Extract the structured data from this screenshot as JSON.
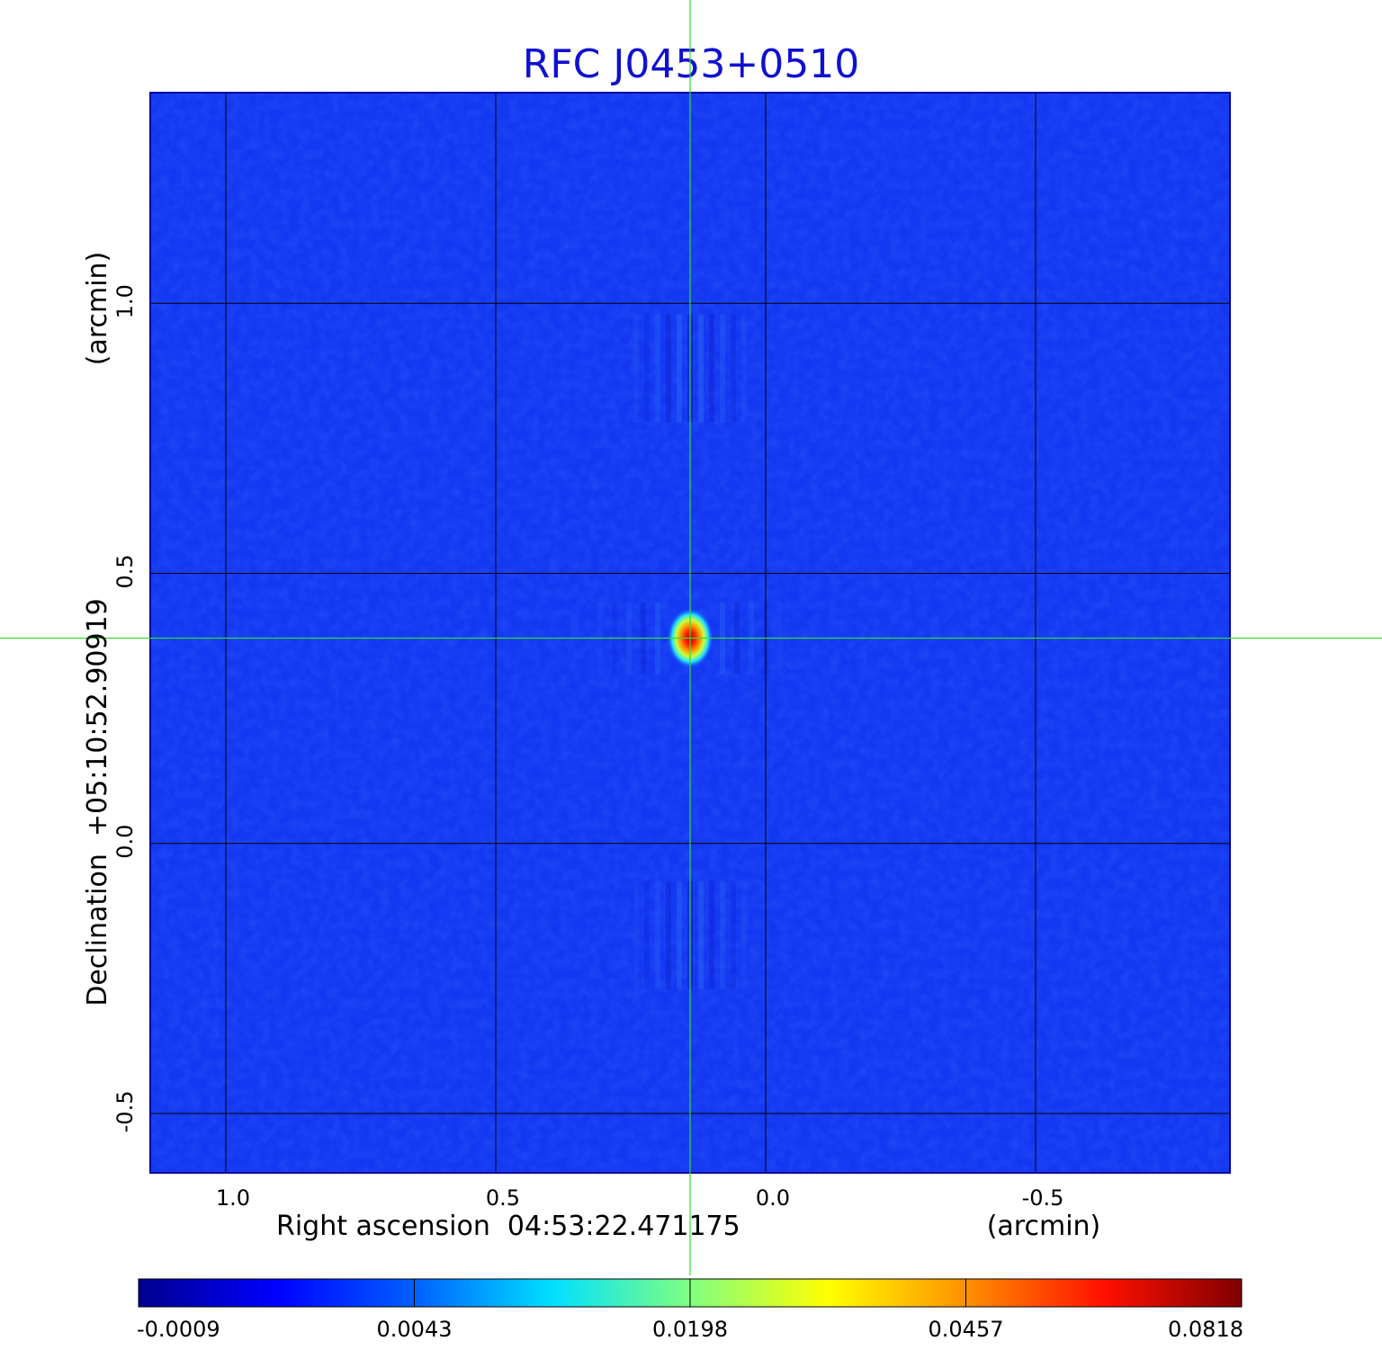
{
  "chart_data": {
    "type": "heatmap",
    "title": "RFC J0453+0510",
    "xlabel": "Right ascension  04:53:22.471175",
    "x_unit": "(arcmin)",
    "ylabel": "Declination  +05:10:52.90919",
    "y_unit": "(arcmin)",
    "xlim": [
      1.14,
      -0.86
    ],
    "ylim": [
      -0.61,
      1.39
    ],
    "x_ticks": [
      {
        "value": 1.0,
        "label": "1.0"
      },
      {
        "value": 0.5,
        "label": "0.5"
      },
      {
        "value": 0.0,
        "label": "0.0"
      },
      {
        "value": -0.5,
        "label": "-0.5"
      }
    ],
    "y_ticks": [
      {
        "value": 1.0,
        "label": "1.0"
      },
      {
        "value": 0.5,
        "label": "0.5"
      },
      {
        "value": 0.0,
        "label": "0.0"
      },
      {
        "value": -0.5,
        "label": "-0.5"
      }
    ],
    "grid": true,
    "crosshair": {
      "x": 0.14,
      "y": 0.38
    },
    "source_peak": {
      "x": 0.14,
      "y": 0.38,
      "value": 0.0818
    },
    "background_level": 0.0,
    "colorbar": {
      "orientation": "horizontal",
      "placement": "bottom",
      "colormap": "jet",
      "tick_labels": [
        "-0.0009",
        "0.0043",
        "0.0198",
        "0.0457",
        "0.0818"
      ],
      "min": -0.0009,
      "max": 0.0818
    }
  },
  "colors": {
    "title": "#1010d0",
    "background_field": "#1438f2",
    "grid": "#000000",
    "crosshair": "#33dd33",
    "frame": "#0000a0"
  }
}
